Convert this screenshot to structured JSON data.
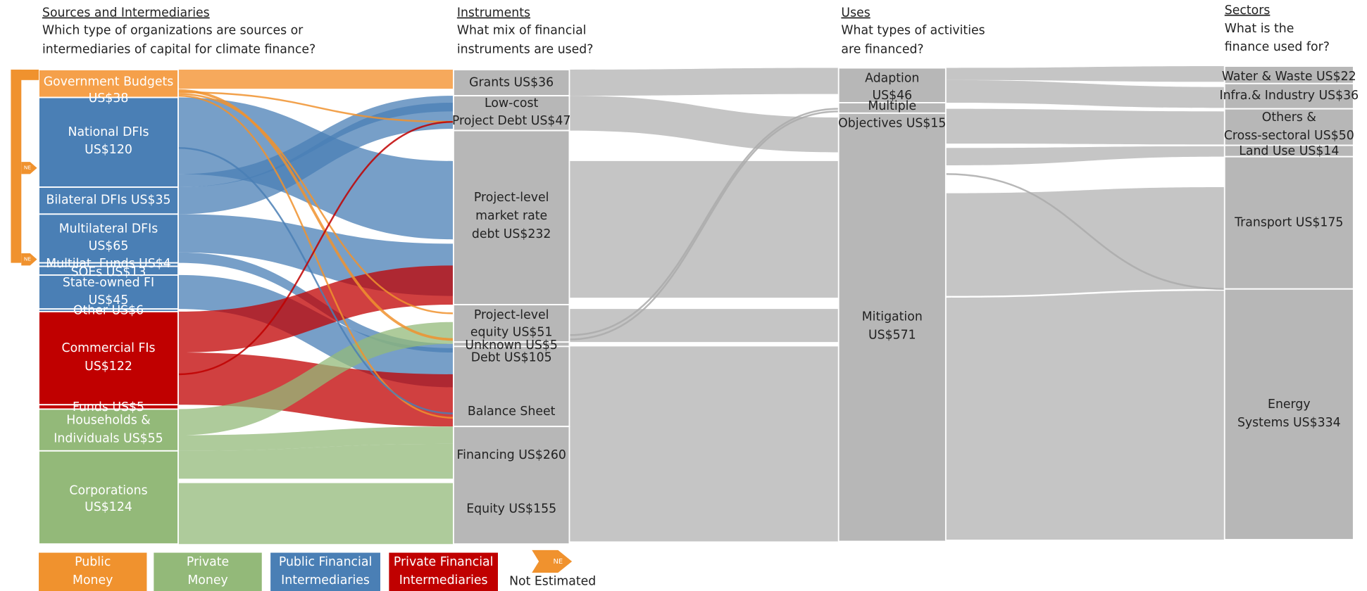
{
  "columns": [
    {
      "title": "Sources and Intermediaries",
      "question": [
        "Which type of organizations are sources or",
        "intermediaries of capital for climate finance?"
      ],
      "nodes": [
        {
          "lines": [
            "Government Budgets",
            "US$38"
          ]
        },
        {
          "lines": [
            "National DFIs",
            "US$120"
          ]
        },
        {
          "lines": [
            "Bilateral DFIs US$35"
          ]
        },
        {
          "lines": [
            "Multilateral DFIs",
            "US$65"
          ]
        },
        {
          "lines": [
            "Multilat. Funds US$4"
          ]
        },
        {
          "lines": [
            "SOEs US$13"
          ]
        },
        {
          "lines": [
            "State-owned FI",
            "US$45"
          ]
        },
        {
          "lines": [
            "Other US$6"
          ]
        },
        {
          "lines": [
            "Commercial FIs",
            "US$122"
          ]
        },
        {
          "lines": [
            "Funds US$5"
          ]
        },
        {
          "lines": [
            "Households &",
            "Individuals US$55"
          ]
        },
        {
          "lines": [
            "Corporations",
            "US$124"
          ]
        }
      ]
    },
    {
      "title": "Instruments",
      "question": [
        "What mix of financial",
        "instruments are used?"
      ],
      "nodes": [
        {
          "lines": [
            "Grants US$36"
          ]
        },
        {
          "lines": [
            "Low-cost",
            "Project Debt US$47"
          ]
        },
        {
          "lines": [
            "Project-level",
            "market rate",
            "debt US$232"
          ]
        },
        {
          "lines": [
            "Project-level",
            "equity US$51"
          ]
        },
        {
          "lines": [
            "Unknown US$5"
          ]
        },
        {
          "lines": [
            "Debt US$105",
            "Balance Sheet"
          ]
        },
        {
          "lines": [
            "Financing US$260",
            "Equity US$155"
          ]
        }
      ]
    },
    {
      "title": "Uses",
      "question": [
        "What types of activities",
        "are financed?"
      ],
      "nodes": [
        {
          "lines": [
            "Adaption",
            "US$46"
          ]
        },
        {
          "lines": [
            "Multiple",
            "Objectives US$15"
          ]
        },
        {
          "lines": [
            "Mitigation",
            "US$571"
          ]
        }
      ]
    },
    {
      "title": "Sectors",
      "question": [
        "What is the",
        "finance used for?"
      ],
      "nodes": [
        {
          "lines": [
            "Water & Waste US$22"
          ]
        },
        {
          "lines": [
            "Infra.& Industry US$36"
          ]
        },
        {
          "lines": [
            "Others &",
            "Cross-sectoral US$50"
          ]
        },
        {
          "lines": [
            "Land Use US$14"
          ]
        },
        {
          "lines": [
            "Transport US$175"
          ]
        },
        {
          "lines": [
            "Energy",
            "Systems US$334"
          ]
        }
      ]
    }
  ],
  "legend": [
    {
      "lines": [
        "Public",
        "Money"
      ]
    },
    {
      "lines": [
        "Private",
        "Money"
      ]
    },
    {
      "lines": [
        "Public Financial",
        "Intermediaries"
      ]
    },
    {
      "lines": [
        "Private Financial",
        "Intermediaries"
      ]
    }
  ],
  "ne_marker": "NE",
  "ne_legend": "Not Estimated"
}
